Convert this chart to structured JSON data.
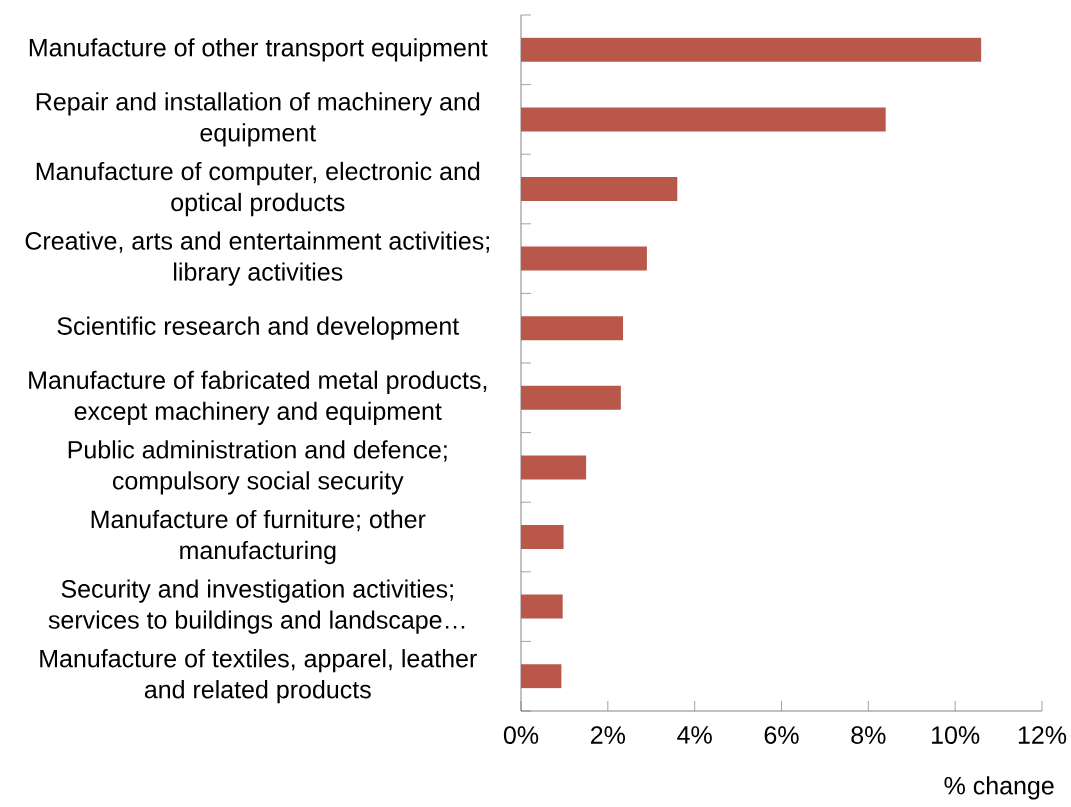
{
  "chart_data": {
    "type": "bar",
    "orientation": "horizontal",
    "xlabel": "% change",
    "categories": [
      "Manufacture of other transport equipment",
      "Repair and installation of machinery and equipment",
      "Manufacture of computer, electronic and optical products",
      "Creative, arts and entertainment activities; library activities",
      "Scientific research and development",
      "Manufacture of fabricated metal products, except machinery and equipment",
      "Public administration and defence; compulsory social security",
      "Manufacture of furniture; other manufacturing",
      "Security and investigation activities; services to buildings and landscape…",
      "Manufacture of textiles, apparel, leather and related products"
    ],
    "values": [
      10.6,
      8.4,
      3.6,
      2.9,
      2.35,
      2.3,
      1.5,
      0.98,
      0.96,
      0.93
    ],
    "color": "#b9574a",
    "xlim": [
      0,
      12
    ],
    "xticks": [
      {
        "value": 0,
        "label": "0%"
      },
      {
        "value": 2,
        "label": "2%"
      },
      {
        "value": 4,
        "label": "4%"
      },
      {
        "value": 6,
        "label": "6%"
      },
      {
        "value": 8,
        "label": "8%"
      },
      {
        "value": 10,
        "label": "10%"
      },
      {
        "value": 12,
        "label": "12%"
      }
    ],
    "grid": false
  }
}
